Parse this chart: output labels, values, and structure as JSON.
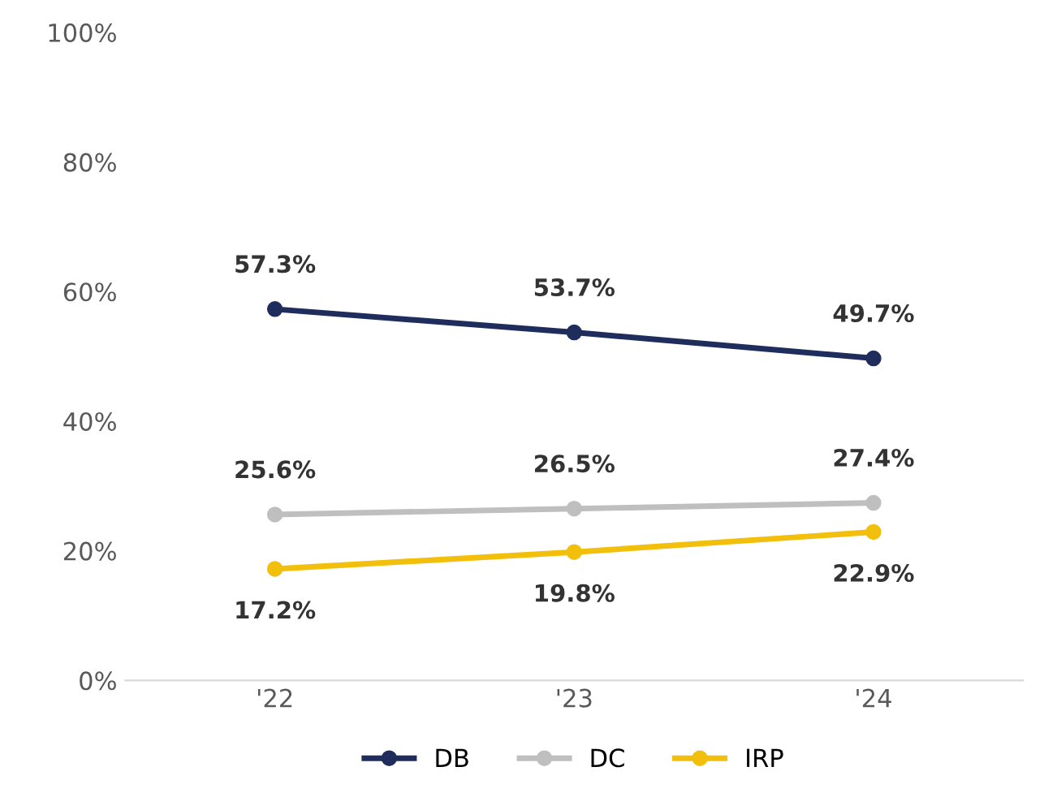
{
  "chart_data": {
    "type": "line",
    "categories": [
      "'22",
      "'23",
      "'24"
    ],
    "series": [
      {
        "name": "DB",
        "color": "#1f2d5c",
        "values": [
          57.3,
          53.7,
          49.7
        ],
        "value_labels": [
          "57.3%",
          "53.7%",
          "49.7%"
        ]
      },
      {
        "name": "DC",
        "color": "#bfbfbf",
        "values": [
          25.6,
          26.5,
          27.4
        ],
        "value_labels": [
          "25.6%",
          "26.5%",
          "27.4%"
        ]
      },
      {
        "name": "IRP",
        "color": "#f2bf0c",
        "values": [
          17.2,
          19.8,
          22.9
        ],
        "value_labels": [
          "17.2%",
          "19.8%",
          "22.9%"
        ]
      }
    ],
    "ylim": [
      0,
      100
    ],
    "yticks": [
      {
        "value": 0,
        "label": "0%"
      },
      {
        "value": 20,
        "label": "20%"
      },
      {
        "value": 40,
        "label": "40%"
      },
      {
        "value": 60,
        "label": "60%"
      },
      {
        "value": 80,
        "label": "80%"
      },
      {
        "value": 100,
        "label": "100%"
      }
    ],
    "grid": false,
    "legend": "bottom",
    "marker": "circle",
    "line_style": "solid"
  }
}
